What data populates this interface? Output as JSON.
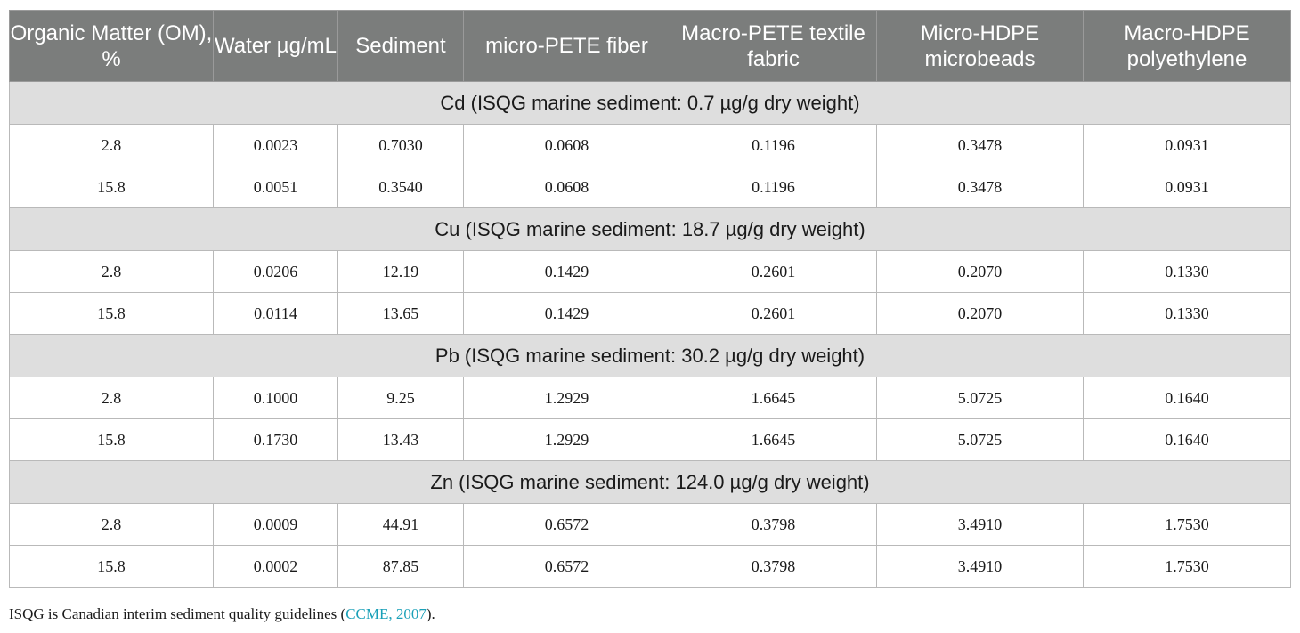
{
  "table": {
    "headers": [
      "Organic Matter (OM), %",
      "Water µg/mL",
      "Sediment",
      "micro-PETE fiber",
      "Macro-PETE textile fabric",
      "Micro-HDPE microbeads",
      "Macro-HDPE polyethylene"
    ],
    "groups": [
      {
        "title": "Cd (ISQG marine sediment: 0.7 µg/g dry weight)",
        "rows": [
          [
            "2.8",
            "0.0023",
            "0.7030",
            "0.0608",
            "0.1196",
            "0.3478",
            "0.0931"
          ],
          [
            "15.8",
            "0.0051",
            "0.3540",
            "0.0608",
            "0.1196",
            "0.3478",
            "0.0931"
          ]
        ]
      },
      {
        "title": "Cu (ISQG marine sediment: 18.7 µg/g dry weight)",
        "rows": [
          [
            "2.8",
            "0.0206",
            "12.19",
            "0.1429",
            "0.2601",
            "0.2070",
            "0.1330"
          ],
          [
            "15.8",
            "0.0114",
            "13.65",
            "0.1429",
            "0.2601",
            "0.2070",
            "0.1330"
          ]
        ]
      },
      {
        "title": "Pb (ISQG marine sediment: 30.2 µg/g dry weight)",
        "rows": [
          [
            "2.8",
            "0.1000",
            "9.25",
            "1.2929",
            "1.6645",
            "5.0725",
            "0.1640"
          ],
          [
            "15.8",
            "0.1730",
            "13.43",
            "1.2929",
            "1.6645",
            "5.0725",
            "0.1640"
          ]
        ]
      },
      {
        "title": "Zn (ISQG marine sediment: 124.0 µg/g dry weight)",
        "rows": [
          [
            "2.8",
            "0.0009",
            "44.91",
            "0.6572",
            "0.3798",
            "3.4910",
            "1.7530"
          ],
          [
            "15.8",
            "0.0002",
            "87.85",
            "0.6572",
            "0.3798",
            "3.4910",
            "1.7530"
          ]
        ]
      }
    ]
  },
  "footnote": {
    "text_before": "ISQG is Canadian interim sediment quality guidelines (",
    "citation": "CCME, 2007",
    "text_after": ")."
  },
  "colors": {
    "header_bg": "#7b7d7c",
    "group_bg": "#dedede",
    "citation_link": "#1aa0b8"
  }
}
